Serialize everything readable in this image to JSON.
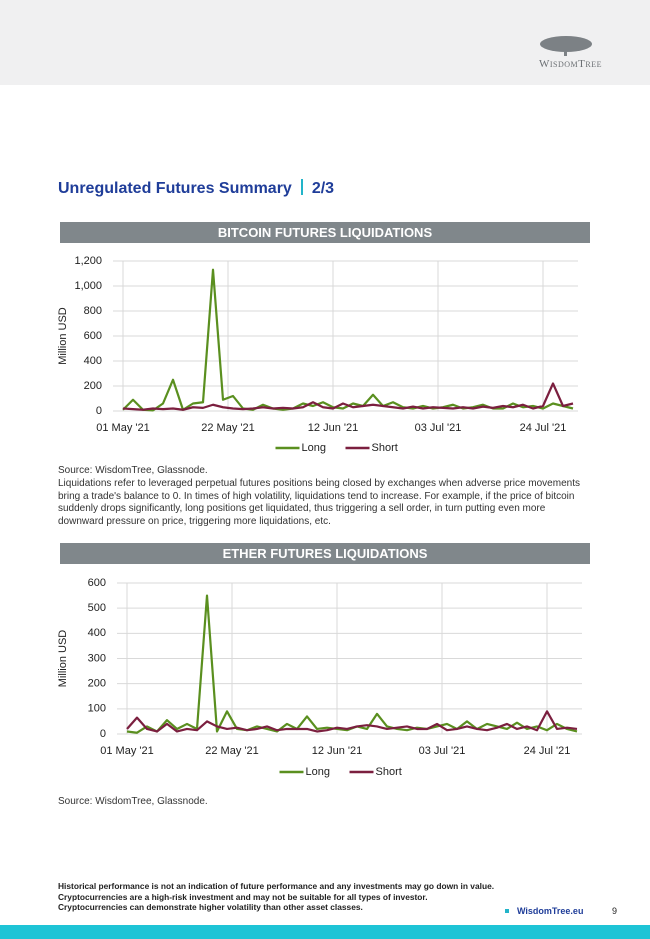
{
  "header": {
    "logo": "WisdomTree"
  },
  "title": "Unregulated Futures Summary",
  "title_part": "2/3",
  "description": "Liquidations refer to leveraged perpetual futures positions being closed by exchanges when adverse price movements bring a trade's balance to 0. In times of high volatility, liquidations tend to increase. For example, if the price of bitcoin suddenly drops significantly, long positions get liquidated, thus triggering a sell order, in turn putting even more downward pressure on price, triggering more liquidations, etc.",
  "chart_data": [
    {
      "type": "line",
      "title": "BITCOIN FUTURES LIQUIDATIONS",
      "y_label": "Million USD",
      "source": "Source: WisdomTree, Glassnode.",
      "x": [
        "2021-05-01",
        "2021-05-03",
        "2021-05-05",
        "2021-05-07",
        "2021-05-09",
        "2021-05-11",
        "2021-05-13",
        "2021-05-15",
        "2021-05-17",
        "2021-05-19",
        "2021-05-21",
        "2021-05-23",
        "2021-05-25",
        "2021-05-27",
        "2021-05-29",
        "2021-05-31",
        "2021-06-02",
        "2021-06-04",
        "2021-06-06",
        "2021-06-08",
        "2021-06-10",
        "2021-06-12",
        "2021-06-14",
        "2021-06-16",
        "2021-06-18",
        "2021-06-20",
        "2021-06-22",
        "2021-06-24",
        "2021-06-26",
        "2021-06-28",
        "2021-06-30",
        "2021-07-02",
        "2021-07-04",
        "2021-07-06",
        "2021-07-08",
        "2021-07-10",
        "2021-07-12",
        "2021-07-14",
        "2021-07-16",
        "2021-07-18",
        "2021-07-20",
        "2021-07-22",
        "2021-07-24",
        "2021-07-26",
        "2021-07-28",
        "2021-07-30"
      ],
      "series": [
        {
          "name": "Long",
          "color": "#5a8f1f",
          "values": [
            10,
            90,
            10,
            5,
            60,
            250,
            10,
            60,
            70,
            1130,
            90,
            120,
            20,
            10,
            50,
            20,
            10,
            20,
            60,
            40,
            70,
            30,
            20,
            60,
            40,
            130,
            40,
            70,
            30,
            20,
            40,
            20,
            30,
            50,
            20,
            30,
            50,
            20,
            20,
            60,
            30,
            40,
            20,
            60,
            40,
            20
          ]
        },
        {
          "name": "Short",
          "color": "#7b1f3f",
          "values": [
            20,
            15,
            10,
            20,
            15,
            20,
            10,
            30,
            25,
            50,
            30,
            20,
            15,
            20,
            30,
            20,
            25,
            20,
            30,
            70,
            30,
            20,
            60,
            30,
            40,
            50,
            40,
            30,
            20,
            35,
            20,
            30,
            25,
            20,
            30,
            20,
            35,
            25,
            40,
            30,
            50,
            20,
            40,
            220,
            40,
            60
          ]
        }
      ],
      "xlim": [
        "2021-04-29",
        "2021-07-31"
      ],
      "xticks": [
        {
          "value": "2021-05-01",
          "label": "01 May '21"
        },
        {
          "value": "2021-05-22",
          "label": "22 May '21"
        },
        {
          "value": "2021-06-12",
          "label": "12 Jun '21"
        },
        {
          "value": "2021-07-03",
          "label": "03 Jul '21"
        },
        {
          "value": "2021-07-24",
          "label": "24 Jul '21"
        }
      ],
      "ylim": [
        0,
        1200
      ],
      "yticks": [
        0,
        200,
        400,
        600,
        800,
        {
          "value": 1000,
          "label": "1,000"
        },
        {
          "value": 1200,
          "label": "1,200"
        }
      ],
      "grid": true,
      "legend": "bottom"
    },
    {
      "type": "line",
      "title": "ETHER FUTURES LIQUIDATIONS",
      "y_label": "Million USD",
      "source": "Source: WisdomTree, Glassnode.",
      "x": [
        "2021-05-01",
        "2021-05-03",
        "2021-05-05",
        "2021-05-07",
        "2021-05-09",
        "2021-05-11",
        "2021-05-13",
        "2021-05-15",
        "2021-05-17",
        "2021-05-19",
        "2021-05-21",
        "2021-05-23",
        "2021-05-25",
        "2021-05-27",
        "2021-05-29",
        "2021-05-31",
        "2021-06-02",
        "2021-06-04",
        "2021-06-06",
        "2021-06-08",
        "2021-06-10",
        "2021-06-12",
        "2021-06-14",
        "2021-06-16",
        "2021-06-18",
        "2021-06-20",
        "2021-06-22",
        "2021-06-24",
        "2021-06-26",
        "2021-06-28",
        "2021-06-30",
        "2021-07-02",
        "2021-07-04",
        "2021-07-06",
        "2021-07-08",
        "2021-07-10",
        "2021-07-12",
        "2021-07-14",
        "2021-07-16",
        "2021-07-18",
        "2021-07-20",
        "2021-07-22",
        "2021-07-24",
        "2021-07-26",
        "2021-07-28",
        "2021-07-30"
      ],
      "series": [
        {
          "name": "Long",
          "color": "#5a8f1f",
          "values": [
            10,
            5,
            30,
            10,
            55,
            20,
            40,
            20,
            550,
            10,
            90,
            20,
            15,
            30,
            20,
            10,
            40,
            20,
            70,
            20,
            25,
            20,
            15,
            30,
            20,
            80,
            30,
            20,
            15,
            25,
            20,
            30,
            40,
            20,
            50,
            20,
            40,
            30,
            20,
            45,
            20,
            30,
            15,
            40,
            20,
            10
          ]
        },
        {
          "name": "Short",
          "color": "#7b1f3f",
          "values": [
            20,
            65,
            20,
            10,
            40,
            10,
            20,
            15,
            50,
            30,
            20,
            25,
            15,
            20,
            30,
            15,
            20,
            20,
            20,
            10,
            15,
            25,
            20,
            30,
            35,
            30,
            20,
            25,
            30,
            20,
            20,
            40,
            15,
            20,
            30,
            20,
            15,
            25,
            40,
            20,
            30,
            15,
            90,
            20,
            25,
            20
          ]
        }
      ],
      "xlim": [
        "2021-04-29",
        "2021-07-31"
      ],
      "xticks": [
        {
          "value": "2021-05-01",
          "label": "01 May '21"
        },
        {
          "value": "2021-05-22",
          "label": "22 May '21"
        },
        {
          "value": "2021-06-12",
          "label": "12 Jun '21"
        },
        {
          "value": "2021-07-03",
          "label": "03 Jul '21"
        },
        {
          "value": "2021-07-24",
          "label": "24 Jul '21"
        }
      ],
      "ylim": [
        0,
        600
      ],
      "yticks": [
        0,
        100,
        200,
        300,
        400,
        500,
        600
      ],
      "grid": true,
      "legend": "bottom"
    }
  ],
  "footer": {
    "disclaimers": [
      "Historical performance is not an indication of future performance and any investments may go down in value.",
      "Cryptocurrencies are a high-risk investment and may not be suitable for all types of investor.",
      "Cryptocurrencies can demonstrate higher volatility than other asset classes."
    ],
    "site": "WisdomTree.eu",
    "page": "9"
  }
}
